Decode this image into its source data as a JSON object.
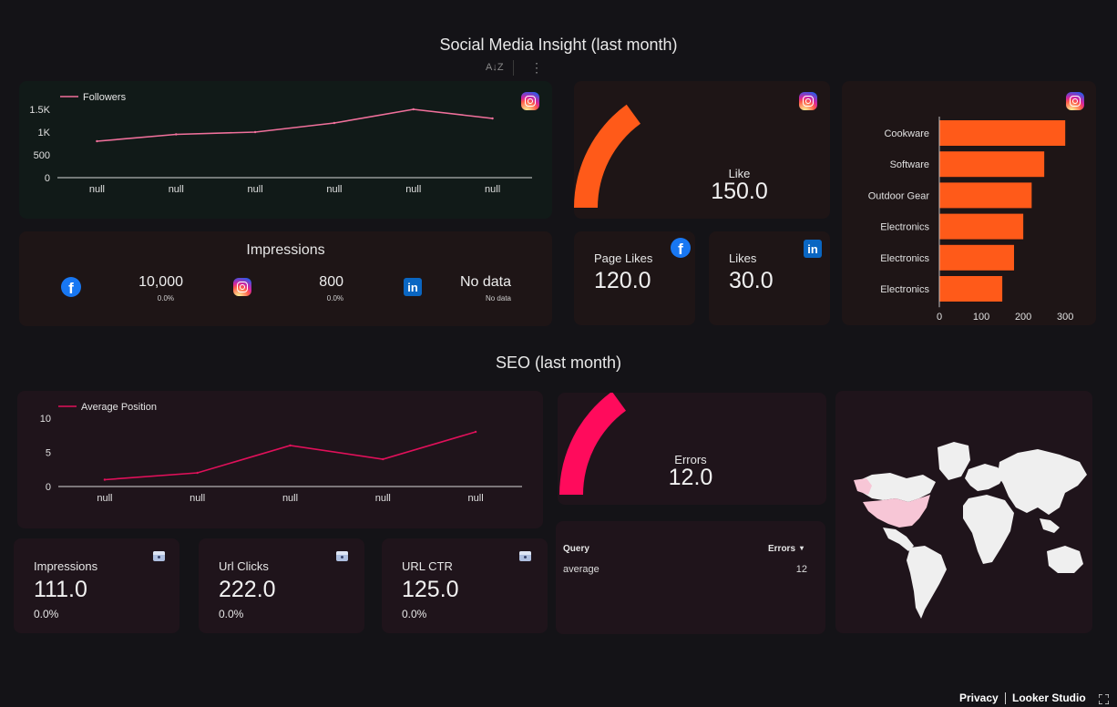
{
  "social": {
    "title": "Social Media Insight (last month)",
    "toolbar": {
      "sort_label": "A↓Z",
      "more_label": "⋮"
    }
  },
  "followers_chart": {
    "chart_data": {
      "type": "line",
      "series": [
        {
          "name": "Followers",
          "values": [
            800,
            950,
            1000,
            1200,
            1500,
            1300
          ]
        }
      ],
      "categories": [
        "null",
        "null",
        "null",
        "null",
        "null",
        "null"
      ],
      "yticks": [
        "0",
        "500",
        "1K",
        "1.5K"
      ],
      "ylim": [
        0,
        1500
      ],
      "color": "#f0709b"
    }
  },
  "like_gauge": {
    "label": "Like",
    "value": "150.0",
    "color": "#ff5a19"
  },
  "page_likes": {
    "label": "Page Likes",
    "value": "120.0"
  },
  "likes": {
    "label": "Likes",
    "value": "30.0"
  },
  "impressions_social": {
    "title": "Impressions",
    "items": [
      {
        "icon": "facebook-icon",
        "value": "10,000",
        "change": "0.0%"
      },
      {
        "icon": "instagram-icon",
        "value": "800",
        "change": "0.0%"
      },
      {
        "icon": "linkedin-icon",
        "value": "No data",
        "change": "No data"
      }
    ]
  },
  "product_chart": {
    "chart_data": {
      "type": "bar",
      "orientation": "horizontal",
      "categories": [
        "Cookware",
        "Software",
        "Outdoor Gear",
        "Electronics",
        "Electronics",
        "Electronics"
      ],
      "values": [
        300,
        250,
        220,
        200,
        178,
        150
      ],
      "xticks": [
        "0",
        "100",
        "200",
        "300"
      ],
      "xlim": [
        0,
        330
      ],
      "color": "#ff5a19"
    }
  },
  "seo": {
    "title": "SEO (last month)"
  },
  "position_chart": {
    "chart_data": {
      "type": "line",
      "series": [
        {
          "name": "Average Position",
          "values": [
            1,
            2,
            6,
            4,
            8
          ]
        }
      ],
      "categories": [
        "null",
        "null",
        "null",
        "null",
        "null"
      ],
      "yticks": [
        "0",
        "5",
        "10"
      ],
      "ylim": [
        0,
        10
      ],
      "color": "#e0105a"
    }
  },
  "errors_gauge": {
    "label": "Errors",
    "value": "12.0",
    "color": "#ff0b5c"
  },
  "seo_kpis": [
    {
      "label": "Impressions",
      "value": "111.0",
      "change": "0.0%"
    },
    {
      "label": "Url Clicks",
      "value": "222.0",
      "change": "0.0%"
    },
    {
      "label": "URL CTR",
      "value": "125.0",
      "change": "0.0%"
    }
  ],
  "query_table": {
    "headers": {
      "query": "Query",
      "errors": "Errors",
      "sort_indicator": "▾"
    },
    "rows": [
      {
        "query": "average",
        "errors": "12"
      }
    ]
  },
  "map": {
    "highlight_color": "#f7c6d6",
    "land_color": "#efefef"
  },
  "footer": {
    "privacy": "Privacy",
    "brand": "Looker Studio",
    "fullscreen_icon": "fullscreen-icon"
  }
}
